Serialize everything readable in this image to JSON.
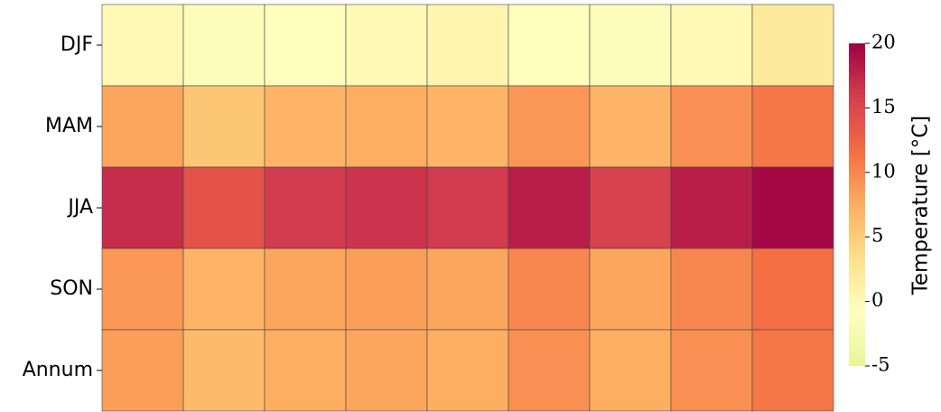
{
  "chart_data": {
    "type": "heatmap",
    "rows": [
      "DJF",
      "MAM",
      "JJA",
      "SON",
      "Annum"
    ],
    "categories": [
      null,
      null,
      null,
      null,
      null,
      null,
      null,
      null,
      null
    ],
    "values": [
      [
        0,
        -1.5,
        -0.5,
        0,
        0.5,
        -0.5,
        -1.5,
        0,
        2
      ],
      [
        8,
        5.5,
        7,
        7.5,
        7,
        9,
        7,
        9.5,
        11
      ],
      [
        17,
        14,
        16,
        16.5,
        16,
        18,
        15.5,
        18,
        19.5
      ],
      [
        9,
        7,
        8,
        8.5,
        8,
        10,
        8,
        10,
        11.5
      ],
      [
        8.5,
        6.5,
        7.5,
        8,
        7.5,
        9.5,
        7.5,
        9.5,
        11
      ]
    ],
    "colorbar_label": "Temperature [°C]",
    "clim": [
      -5,
      20
    ],
    "cticks": [
      -5,
      0,
      5,
      10,
      15,
      20
    ],
    "colorscale": [
      "#e6f598",
      "#ffffbf",
      "#fee08b",
      "#fdae61",
      "#f46d43",
      "#d53e4f",
      "#9e0142"
    ]
  }
}
